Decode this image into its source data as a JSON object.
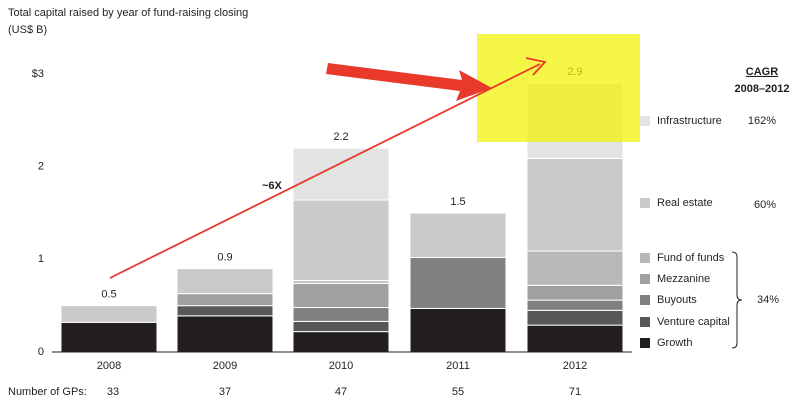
{
  "chart_data": {
    "type": "stacked_bar",
    "title": "Total capital raised by year of fund-raising closing",
    "subtitle": "(US$ B)",
    "categories": [
      "2008",
      "2009",
      "2010",
      "2011",
      "2012"
    ],
    "series": [
      {
        "name": "Growth",
        "color": "#231f20",
        "values": [
          0.32,
          0.39,
          0.22,
          0.47,
          0.29
        ]
      },
      {
        "name": "Venture capital",
        "color": "#58585a",
        "values": [
          0,
          0.11,
          0.11,
          0,
          0.16
        ]
      },
      {
        "name": "Buyouts",
        "color": "#808080",
        "values": [
          0,
          0,
          0.15,
          0.55,
          0.11
        ]
      },
      {
        "name": "Mezzanine",
        "color": "#a0a0a0",
        "values": [
          0,
          0.13,
          0.26,
          0,
          0.16
        ]
      },
      {
        "name": "Fund of funds",
        "color": "#b8b8b8",
        "values": [
          0,
          0,
          0.03,
          0,
          0.37
        ]
      },
      {
        "name": "Real estate",
        "color": "#cacaca",
        "values": [
          0.18,
          0.27,
          0.87,
          0.48,
          1.0
        ]
      },
      {
        "name": "Infrastructure",
        "color": "#e3e3e3",
        "values": [
          0,
          0,
          0.56,
          0,
          0.81
        ]
      }
    ],
    "totals": [
      0.5,
      0.9,
      2.2,
      1.5,
      2.9
    ],
    "ylim": [
      0,
      3
    ],
    "yticks": [
      0,
      1,
      2,
      {
        "value": 3,
        "label": "$3"
      }
    ],
    "grid": false,
    "annotation": "~6X",
    "gp_label": "Number of GPs:",
    "gp_counts": [
      33,
      37,
      47,
      55,
      71
    ],
    "cagr": {
      "title": "CAGR",
      "period": "2008–2012",
      "values": [
        "162%",
        "60%",
        "34%"
      ]
    }
  }
}
